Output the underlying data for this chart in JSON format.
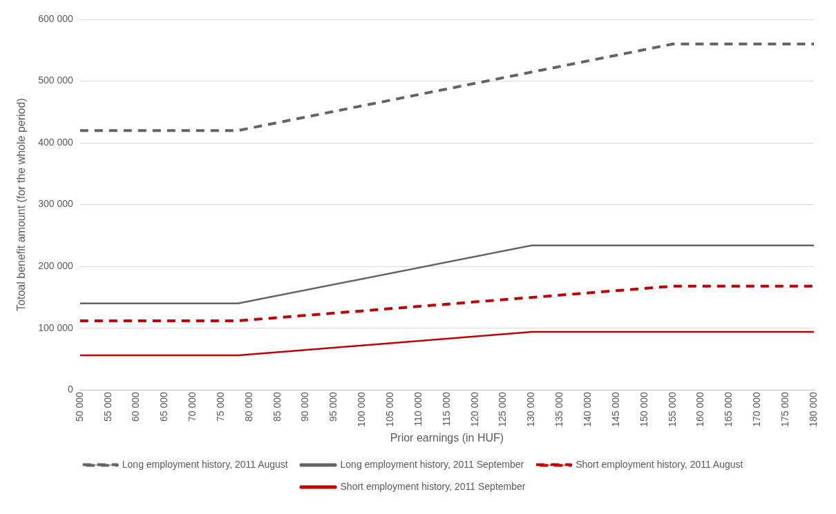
{
  "chart_data": {
    "type": "line",
    "xlabel": "Prior earnings (in HUF)",
    "ylabel": "Totoal benefit amount (for the whole period)",
    "xlim": [
      50000,
      180000
    ],
    "xticks": [
      {
        "value": 50000,
        "label": "50 000"
      },
      {
        "value": 55000,
        "label": "55 000"
      },
      {
        "value": 60000,
        "label": "60 000"
      },
      {
        "value": 65000,
        "label": "65 000"
      },
      {
        "value": 70000,
        "label": "70 000"
      },
      {
        "value": 75000,
        "label": "75 000"
      },
      {
        "value": 80000,
        "label": "80 000"
      },
      {
        "value": 85000,
        "label": "85 000"
      },
      {
        "value": 90000,
        "label": "90 000"
      },
      {
        "value": 95000,
        "label": "95 000"
      },
      {
        "value": 100000,
        "label": "100 000"
      },
      {
        "value": 105000,
        "label": "105 000"
      },
      {
        "value": 110000,
        "label": "110 000"
      },
      {
        "value": 115000,
        "label": "115 000"
      },
      {
        "value": 120000,
        "label": "120 000"
      },
      {
        "value": 125000,
        "label": "125 000"
      },
      {
        "value": 130000,
        "label": "130 000"
      },
      {
        "value": 135000,
        "label": "135 000"
      },
      {
        "value": 140000,
        "label": "140 000"
      },
      {
        "value": 145000,
        "label": "145 000"
      },
      {
        "value": 150000,
        "label": "150 000"
      },
      {
        "value": 155000,
        "label": "155 000"
      },
      {
        "value": 160000,
        "label": "160 000"
      },
      {
        "value": 165000,
        "label": "165 000"
      },
      {
        "value": 170000,
        "label": "170 000"
      },
      {
        "value": 175000,
        "label": "175 000"
      },
      {
        "value": 180000,
        "label": "180 000"
      }
    ],
    "ylim": [
      0,
      600000
    ],
    "yticks": [
      0,
      {
        "value": 100000,
        "label": "100 000"
      },
      {
        "value": 200000,
        "label": "200 000"
      },
      {
        "value": 300000,
        "label": "300 000"
      },
      {
        "value": 400000,
        "label": "400 000"
      },
      {
        "value": 500000,
        "label": "500 000"
      },
      {
        "value": 600000,
        "label": "600 000"
      }
    ],
    "grid": "y",
    "legend": "bottom",
    "marker": "none",
    "series": [
      {
        "name": "Long employment history, 2011 August",
        "color": "#636363",
        "line_style": "dashed",
        "x": [
          50000,
          78000,
          155000,
          180000
        ],
        "values": [
          420000,
          420000,
          560000,
          560000
        ]
      },
      {
        "name": "Long employment history, 2011 September",
        "color": "#636363",
        "line_style": "solid",
        "x": [
          50000,
          78000,
          130000,
          180000
        ],
        "values": [
          140000,
          140000,
          234000,
          234000
        ]
      },
      {
        "name": "Short employment history, 2011 August",
        "color": "#c00000",
        "line_style": "dashed",
        "x": [
          50000,
          78000,
          155000,
          180000
        ],
        "values": [
          112000,
          112000,
          168000,
          168000
        ]
      },
      {
        "name": "Short employment history, 2011 September",
        "color": "#c00000",
        "line_style": "solid",
        "x": [
          50000,
          78000,
          130000,
          180000
        ],
        "values": [
          56000,
          56000,
          94000,
          94000
        ]
      }
    ]
  }
}
